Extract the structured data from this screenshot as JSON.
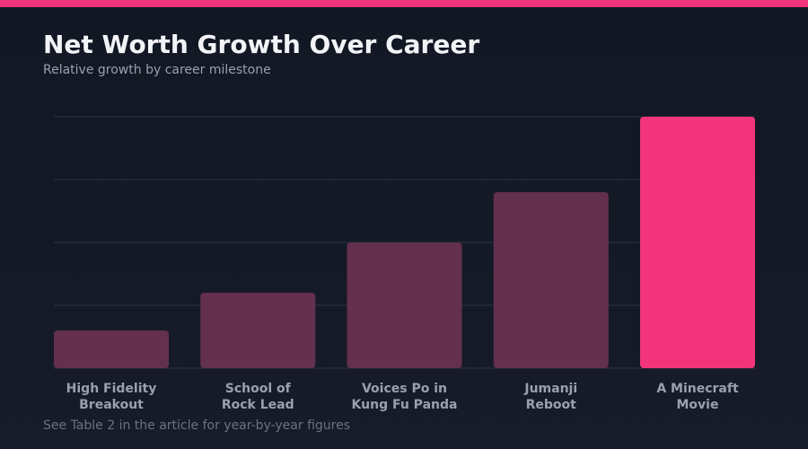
{
  "colors": {
    "accent": "#f2357a",
    "bar": "#63304d",
    "highlight_bar": "#f2357a",
    "grid": "#2e3342",
    "background": "#131824"
  },
  "header": {
    "title": "Net Worth Growth Over Career",
    "subtitle": "Relative growth by career milestone"
  },
  "footnote": "See Table 2 in the article for year-by-year figures",
  "chart_data": {
    "type": "bar",
    "title": "Net Worth Growth Over Career",
    "subtitle": "Relative growth by career milestone",
    "xlabel": "",
    "ylabel": "",
    "categories": [
      [
        "High Fidelity",
        "Breakout"
      ],
      [
        "School of",
        "Rock Lead"
      ],
      [
        "Voices Po in",
        "Kung Fu Panda"
      ],
      [
        "Jumanji",
        "Reboot"
      ],
      [
        "A Minecraft",
        "Movie"
      ]
    ],
    "values": [
      15,
      30,
      50,
      70,
      100
    ],
    "ylim": [
      0,
      100
    ],
    "highlight_index": 4,
    "y_tick_labels_shown": false,
    "grid": true
  }
}
